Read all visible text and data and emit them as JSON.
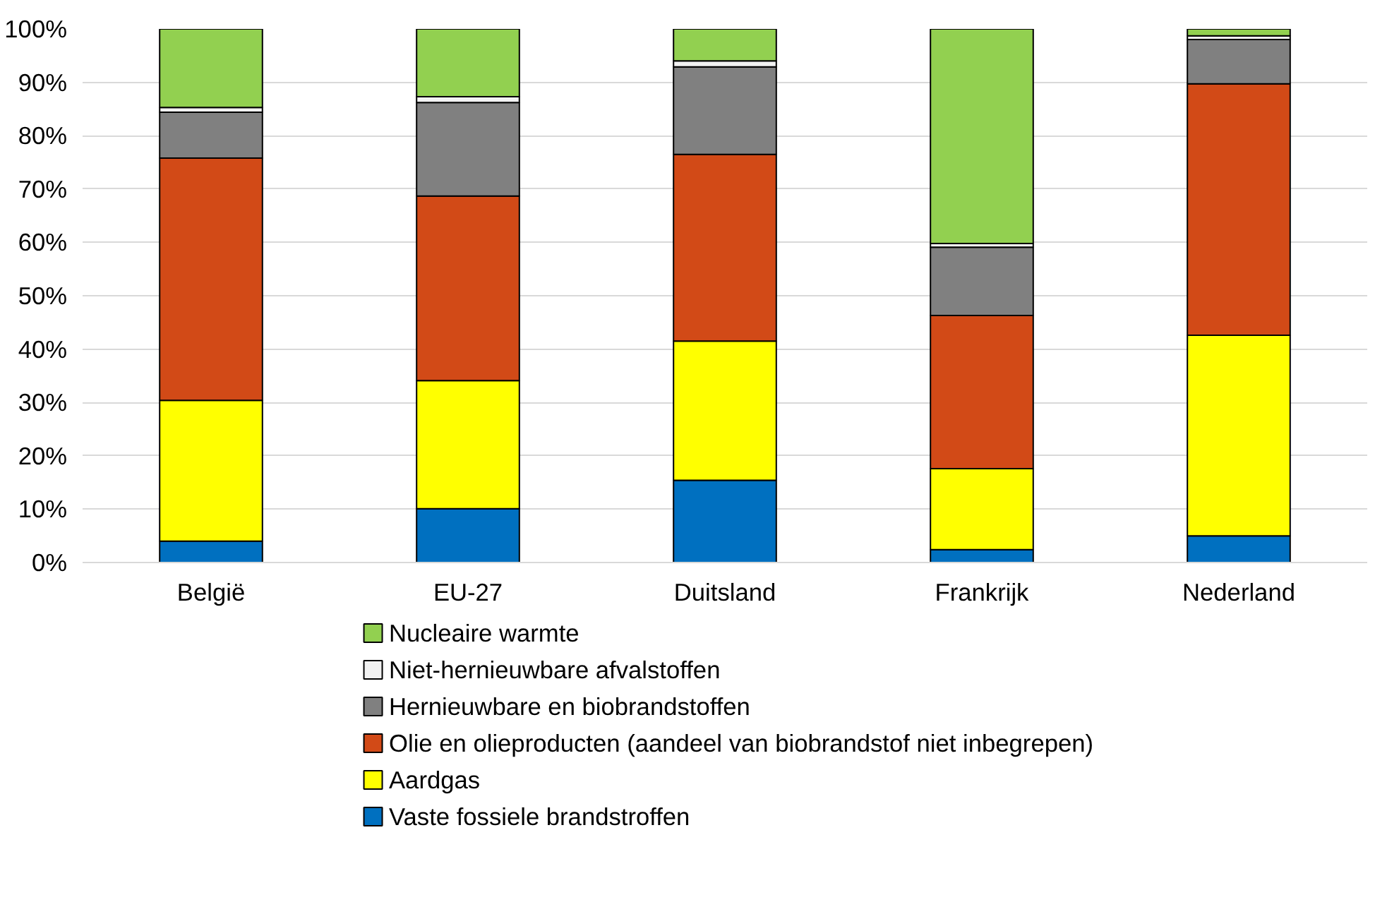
{
  "chart_data": {
    "type": "bar",
    "stacked": true,
    "categories": [
      "België",
      "EU-27",
      "Duitsland",
      "Frankrijk",
      "Nederland"
    ],
    "series": [
      {
        "name": "Vaste fossiele brandstroffen",
        "color": "#0070c0",
        "values": [
          4.0,
          10.1,
          15.4,
          2.4,
          5.0
        ]
      },
      {
        "name": "Aardgas",
        "color": "#ffff00",
        "values": [
          26.4,
          24.0,
          26.1,
          15.2,
          37.6
        ]
      },
      {
        "name": "Olie en olieproducten (aandeel van biobrandstof niet inbegrepen)",
        "color": "#d24a17",
        "values": [
          45.4,
          34.6,
          35.0,
          28.7,
          47.1
        ]
      },
      {
        "name": "Hernieuwbare en biobrandstoffen",
        "color": "#808080",
        "values": [
          8.6,
          17.5,
          16.4,
          12.8,
          8.3
        ]
      },
      {
        "name": "Niet-hernieuwbare afvalstoffen",
        "color": "#f2f2f2",
        "values": [
          0.9,
          1.1,
          1.1,
          0.7,
          0.7
        ]
      },
      {
        "name": "Nucleaire warmte",
        "color": "#92d050",
        "values": [
          14.7,
          12.7,
          6.0,
          40.2,
          1.3
        ]
      }
    ],
    "ylim": [
      0,
      100
    ],
    "yticks": [
      {
        "value": 0,
        "label": "0%"
      },
      {
        "value": 10,
        "label": "10%"
      },
      {
        "value": 20,
        "label": "20%"
      },
      {
        "value": 30,
        "label": "30%"
      },
      {
        "value": 40,
        "label": "40%"
      },
      {
        "value": 50,
        "label": "50%"
      },
      {
        "value": 60,
        "label": "60%"
      },
      {
        "value": 70,
        "label": "70%"
      },
      {
        "value": 80,
        "label": "80%"
      },
      {
        "value": 90,
        "label": "90%"
      },
      {
        "value": 100,
        "label": "100%"
      }
    ],
    "grid": "y",
    "legend": "bottom"
  }
}
